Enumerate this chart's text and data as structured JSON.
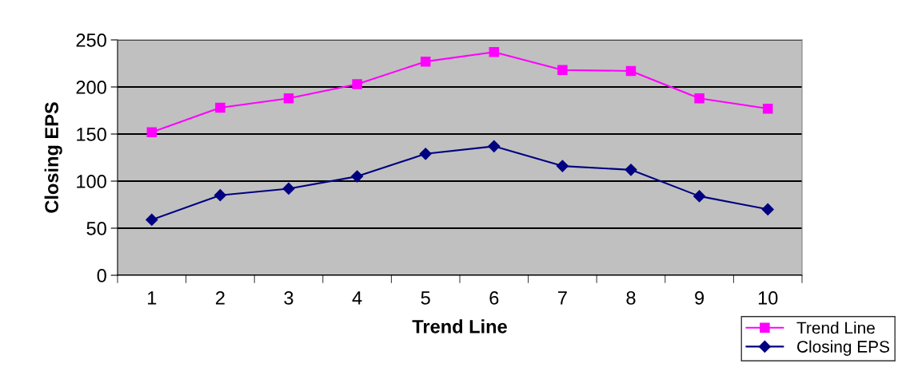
{
  "chart_data": {
    "type": "line",
    "xlabel": "Trend Line",
    "ylabel": "Closing EPS",
    "categories": [
      "1",
      "2",
      "3",
      "4",
      "5",
      "6",
      "7",
      "8",
      "9",
      "10"
    ],
    "series": [
      {
        "name": "Trend Line",
        "color": "#ff00ff",
        "marker": "square",
        "values": [
          152,
          178,
          188,
          203,
          227,
          237,
          218,
          217,
          188,
          177
        ]
      },
      {
        "name": "Closing EPS",
        "color": "#000080",
        "marker": "diamond",
        "values": [
          59,
          85,
          92,
          105,
          129,
          137,
          116,
          112,
          84,
          70
        ]
      }
    ],
    "ylim": [
      0,
      250
    ],
    "yticks": [
      0,
      50,
      100,
      150,
      200,
      250
    ],
    "grid": "y",
    "legend": "bottom right"
  }
}
